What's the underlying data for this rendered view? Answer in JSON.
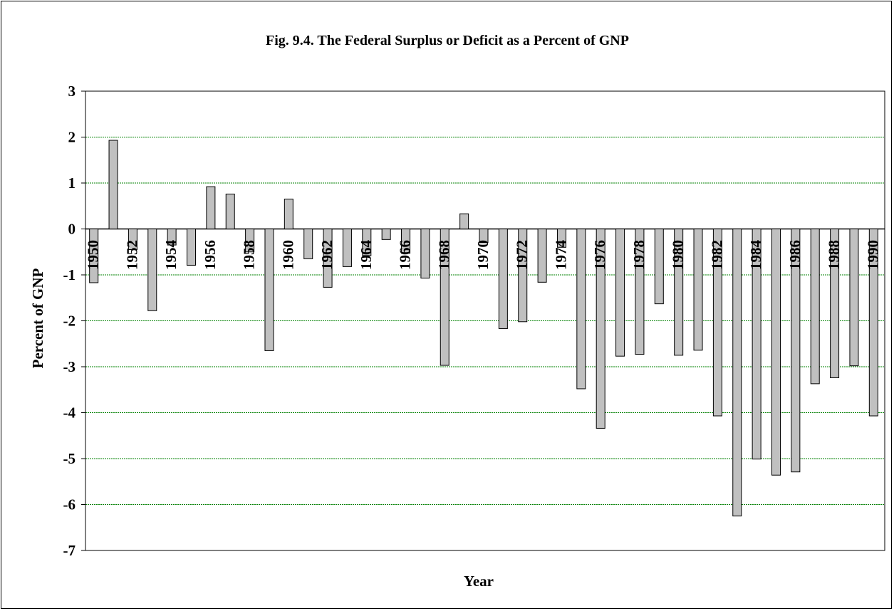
{
  "chart_data": {
    "type": "bar",
    "title": "Fig. 9.4. The Federal Surplus or Deficit as a Percent of GNP",
    "xlabel": "Year",
    "ylabel": "Percent of GNP",
    "ylim": [
      -7,
      3
    ],
    "yticks": [
      3,
      2,
      1,
      0,
      -1,
      -2,
      -3,
      -4,
      -5,
      -6,
      -7
    ],
    "grid": true,
    "legend": "none",
    "categories": [
      "1950",
      "1951",
      "1952",
      "1953",
      "1954",
      "1955",
      "1956",
      "1957",
      "1958",
      "1959",
      "1960",
      "1961",
      "1962",
      "1963",
      "1964",
      "1965",
      "1966",
      "1967",
      "1968",
      "1969",
      "1970",
      "1971",
      "1972",
      "1973",
      "1974",
      "1975",
      "1976",
      "1977",
      "1978",
      "1979",
      "1980",
      "1981",
      "1982",
      "1983",
      "1984",
      "1985",
      "1986",
      "1987",
      "1988",
      "1989",
      "1990"
    ],
    "tick_labels": [
      "1950",
      "1952",
      "1954",
      "1956",
      "1958",
      "1960",
      "1962",
      "1964",
      "1966",
      "1968",
      "1970",
      "1972",
      "1974",
      "1976",
      "1978",
      "1980",
      "1982",
      "1984",
      "1986",
      "1988",
      "1990"
    ],
    "values": [
      -1.17,
      1.93,
      -0.45,
      -1.78,
      -0.35,
      -0.79,
      0.92,
      0.76,
      -0.5,
      -2.65,
      0.65,
      -0.65,
      -1.27,
      -0.82,
      -0.58,
      -0.23,
      -0.53,
      -1.07,
      -2.97,
      0.33,
      -0.3,
      -2.17,
      -2.02,
      -1.16,
      -0.4,
      -3.48,
      -4.34,
      -2.77,
      -2.73,
      -1.63,
      -2.75,
      -2.64,
      -4.07,
      -6.25,
      -5.01,
      -5.36,
      -5.29,
      -3.37,
      -3.24,
      -2.98,
      -4.07
    ],
    "colors": {
      "bar_fill": "#c0c0c0",
      "bar_stroke": "#000000",
      "grid": "#008000",
      "axis": "#000000"
    }
  }
}
